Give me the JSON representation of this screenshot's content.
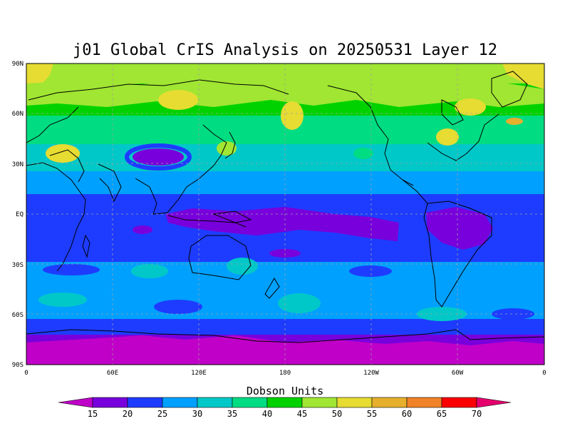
{
  "title": "j01 Global CrIS Analysis on 20250531 Layer 12",
  "lat_labels": [
    "90N",
    "60N",
    "30N",
    "EQ",
    "30S",
    "60S",
    "90S"
  ],
  "lon_labels": [
    "0",
    "60E",
    "120E",
    "180",
    "120W",
    "60W",
    "0"
  ],
  "colorbar": {
    "title": "Dobson Units",
    "tick_labels": [
      "15",
      "20",
      "25",
      "30",
      "35",
      "40",
      "45",
      "50",
      "55",
      "60",
      "65",
      "70"
    ],
    "colors": [
      "#c000c8",
      "#7800dc",
      "#1e3cff",
      "#00a0ff",
      "#00c8c8",
      "#00dc82",
      "#00d200",
      "#a0e632",
      "#e6dc32",
      "#e6af2d",
      "#f08228",
      "#fa0000",
      "#e6006e"
    ]
  },
  "chart_data": {
    "type": "heatmap",
    "title": "j01 Global CrIS Analysis on 20250531 Layer 12",
    "x_ticks": [
      "0",
      "60E",
      "120E",
      "180",
      "120W",
      "60W",
      "0"
    ],
    "y_ticks": [
      "90N",
      "60N",
      "30N",
      "EQ",
      "30S",
      "60S",
      "90S"
    ],
    "lon_range": [
      0,
      360
    ],
    "lat_range": [
      -90,
      90
    ],
    "grid": true,
    "colorbar_label": "Dobson Units",
    "levels": [
      15,
      20,
      25,
      30,
      35,
      40,
      45,
      50,
      55,
      60,
      65,
      70
    ],
    "level_colors": [
      "#c000c8",
      "#7800dc",
      "#1e3cff",
      "#00a0ff",
      "#00c8c8",
      "#00dc82",
      "#00d200",
      "#a0e632",
      "#e6dc32",
      "#e6af2d",
      "#f08228",
      "#fa0000",
      "#e6006e"
    ],
    "zonal_bands_DU": [
      {
        "lat": [
          75,
          90
        ],
        "value": 47
      },
      {
        "lat": [
          60,
          75
        ],
        "value": 45
      },
      {
        "lat": [
          45,
          60
        ],
        "value": 41
      },
      {
        "lat": [
          30,
          45
        ],
        "value": 35
      },
      {
        "lat": [
          20,
          30
        ],
        "value": 31
      },
      {
        "lat": [
          10,
          20
        ],
        "value": 26
      },
      {
        "lat": [
          -10,
          10
        ],
        "value": 22
      },
      {
        "lat": [
          -25,
          -10
        ],
        "value": 23
      },
      {
        "lat": [
          -45,
          -25
        ],
        "value": 26
      },
      {
        "lat": [
          -60,
          -45
        ],
        "value": 28
      },
      {
        "lat": [
          -70,
          -60
        ],
        "value": 24
      },
      {
        "lat": [
          -80,
          -70
        ],
        "value": 19
      },
      {
        "lat": [
          -90,
          -80
        ],
        "value": 17
      }
    ]
  }
}
